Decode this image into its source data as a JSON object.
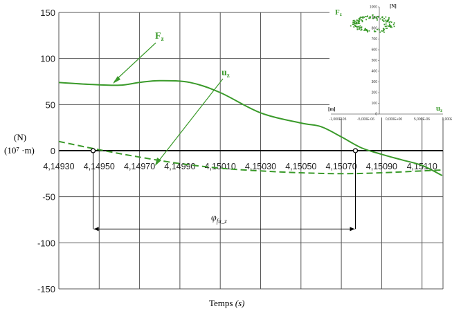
{
  "chart_data": [
    {
      "type": "line",
      "xlabel": "Temps (s)",
      "xlabel_main": "Temps",
      "xlabel_unit": "(s)",
      "ylabel_lines": [
        "(N)",
        "(10⁷ ·m)"
      ],
      "ylim": [
        -150,
        150
      ],
      "yticks": [
        -150,
        -100,
        -50,
        0,
        50,
        100,
        150
      ],
      "ytick_labels": [
        "-150",
        "-100",
        "-50",
        "0",
        "50",
        "100",
        "150"
      ],
      "xlim": [
        4.1493,
        4.1512
      ],
      "xticks": [
        4.1493,
        4.1495,
        4.1497,
        4.1499,
        4.1501,
        4.1503,
        4.1505,
        4.1507,
        4.1509,
        4.1511
      ],
      "xtick_labels": [
        "4,14930",
        "4,14950",
        "4,14970",
        "4,14990",
        "4,15010",
        "4,15030",
        "4,15050",
        "4,15070",
        "4,15090",
        "4,15110"
      ],
      "grid": true,
      "series": [
        {
          "name": "Fz",
          "style": "solid",
          "color": "#3a9a2a",
          "x": [
            4.1493,
            4.14945,
            4.1496,
            4.1497,
            4.1498,
            4.14995,
            4.1501,
            4.1503,
            4.1505,
            4.1506,
            4.1507,
            4.1508,
            4.1509,
            4.151,
            4.1511,
            4.1512
          ],
          "y": [
            74,
            72,
            71,
            74,
            76,
            74,
            63,
            41,
            30,
            26,
            15,
            3,
            -4,
            -10,
            -16,
            -27
          ]
        },
        {
          "name": "uz",
          "style": "dashed",
          "color": "#3a9a2a",
          "x": [
            4.1493,
            4.1495,
            4.1497,
            4.1499,
            4.1501,
            4.1503,
            4.1505,
            4.1507,
            4.1509,
            4.1511,
            4.1512
          ],
          "y": [
            10,
            1,
            -7,
            -14,
            -19,
            -22,
            -24,
            -25,
            -24,
            -22,
            -21
          ]
        }
      ],
      "annotations": {
        "fz_label": "F",
        "fz_sub": "z",
        "uz_label": "u",
        "uz_sub": "z",
        "phase_label": "φ",
        "phase_sub": "fu_z",
        "phase_markers": [
          4.14947,
          4.15077
        ],
        "phase_level": -85
      }
    },
    {
      "type": "scatter",
      "ylabel": "[N]",
      "xlabel_left": "[m]",
      "xlabel_right": "u",
      "xlabel_right_sub": "z",
      "series_label": "F",
      "series_label_sub": "z",
      "xlim": [
        -1e-05,
        1e-05
      ],
      "ylim": [
        0,
        1000
      ],
      "xtick_labels": [
        "-1,000E-05",
        "-5,000E-06",
        "0,000E+00",
        "5,000E-06",
        "1,000E-05"
      ],
      "ytick_labels": [
        "0",
        "100",
        "200",
        "300",
        "400",
        "500",
        "600",
        "700",
        "800",
        "900",
        "1000"
      ],
      "color": "#3a9a2a",
      "ellipse": {
        "cx": -2.5e-06,
        "cy": 840,
        "rx": 3.4e-06,
        "ry": 75
      },
      "n_points": 150
    }
  ]
}
